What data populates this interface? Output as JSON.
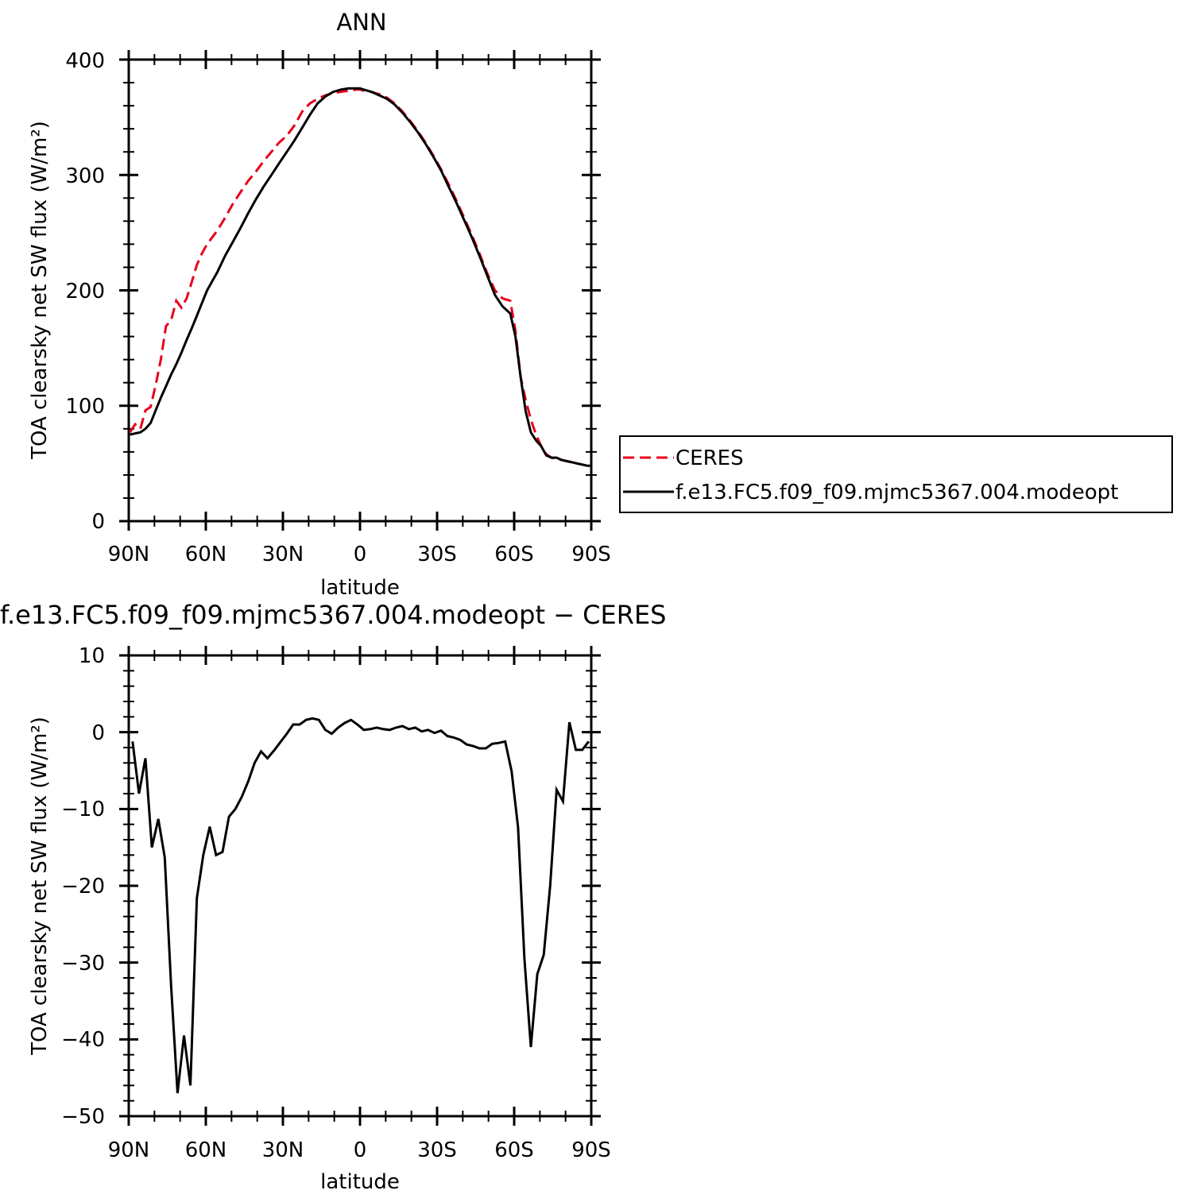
{
  "chart_data": [
    {
      "type": "line",
      "title": "ANN",
      "xlabel": "latitude",
      "ylabel": "TOA clearsky net SW flux (W/m²)",
      "xlim": [
        90,
        -90
      ],
      "ylim": [
        0,
        400
      ],
      "xticks": [
        90,
        60,
        30,
        0,
        -30,
        -60,
        -90
      ],
      "xtick_labels": [
        "90N",
        "60N",
        "30N",
        "0",
        "30S",
        "60S",
        "90S"
      ],
      "yticks": [
        0,
        100,
        200,
        300,
        400
      ],
      "ytick_labels": [
        "0",
        "100",
        "200",
        "300",
        "400"
      ],
      "legend_position": "right",
      "colors": {
        "CERES": "#e8001c",
        "model": "#000000"
      },
      "series": [
        {
          "name": "CERES",
          "style": "dashed",
          "x": [
            89.5,
            87.5,
            85.5,
            83.5,
            81.5,
            79.5,
            77.5,
            75.5,
            73.5,
            71.5,
            69.5,
            67.5,
            65.5,
            63.5,
            61.5,
            59.5,
            57.5,
            55.5,
            52.5,
            49.5,
            46.5,
            43.5,
            40.5,
            37.5,
            34.5,
            31.5,
            28.5,
            25.5,
            22.5,
            19.5,
            16.5,
            13.5,
            10.5,
            7.5,
            4.5,
            1.5,
            0,
            -1.5,
            -4.5,
            -7.5,
            -10.5,
            -13.5,
            -16.5,
            -19.5,
            -22.5,
            -25.5,
            -28.5,
            -31.5,
            -34.5,
            -37.5,
            -40.5,
            -43.5,
            -46.5,
            -49.5,
            -52.5,
            -55.5,
            -58.5,
            -60.5,
            -62.5,
            -64.5,
            -66.5,
            -68.5,
            -70.5,
            -72.5,
            -74.5,
            -76.5,
            -78.5,
            -80.5,
            -82.5,
            -84.5,
            -86.5,
            -88.5,
            -89.5
          ],
          "y": [
            77,
            84,
            80,
            96,
            99,
            118,
            140,
            169,
            174,
            191,
            185,
            193,
            207,
            222,
            232,
            240,
            246,
            252,
            263,
            275,
            285,
            295,
            303,
            312,
            320,
            328,
            334,
            343,
            355,
            362,
            366,
            369,
            371,
            372,
            373,
            374,
            374,
            373,
            372,
            370,
            367,
            362,
            355,
            347,
            338,
            328,
            317,
            305,
            292,
            278,
            263,
            248,
            232,
            215,
            200,
            193,
            191,
            165,
            125,
            105,
            88,
            75,
            65,
            58,
            55,
            54,
            53,
            52,
            51,
            50,
            49,
            48,
            48
          ]
        },
        {
          "name": "f.e13.FC5.f09_f09.mjmc5367.004.modeopt",
          "style": "solid",
          "x": [
            89.5,
            87.5,
            85.5,
            83.5,
            81.5,
            79.5,
            77.5,
            75.5,
            73.5,
            71.5,
            69.5,
            67.5,
            65.5,
            63.5,
            61.5,
            59.5,
            57.5,
            55.5,
            52.5,
            49.5,
            46.5,
            43.5,
            40.5,
            37.5,
            34.5,
            31.5,
            28.5,
            25.5,
            22.5,
            19.5,
            16.5,
            13.5,
            10.5,
            7.5,
            4.5,
            1.5,
            0,
            -1.5,
            -4.5,
            -7.5,
            -10.5,
            -13.5,
            -16.5,
            -19.5,
            -22.5,
            -25.5,
            -28.5,
            -31.5,
            -34.5,
            -37.5,
            -40.5,
            -43.5,
            -46.5,
            -49.5,
            -52.5,
            -55.5,
            -58.5,
            -60.5,
            -62.5,
            -64.5,
            -66.5,
            -68.5,
            -70.5,
            -72.5,
            -74.5,
            -76.5,
            -78.5,
            -80.5,
            -82.5,
            -84.5,
            -86.5,
            -88.5,
            -89.5
          ],
          "y": [
            75,
            76,
            77,
            80,
            85,
            96,
            107,
            117,
            127,
            136,
            146,
            157,
            167,
            178,
            189,
            200,
            208,
            216,
            230,
            242,
            254,
            267,
            279,
            290,
            300,
            310,
            320,
            330,
            341,
            352,
            362,
            368,
            372,
            374,
            375,
            375,
            375,
            374,
            372,
            369,
            366,
            361,
            354,
            346,
            337,
            327,
            316,
            304,
            290,
            276,
            261,
            246,
            230,
            213,
            196,
            186,
            180,
            160,
            125,
            95,
            77,
            70,
            65,
            57,
            55,
            55,
            53,
            52,
            51,
            50,
            49,
            48,
            48
          ]
        }
      ]
    },
    {
      "type": "line",
      "title": "f.e13.FC5.f09_f09.mjmc5367.004.modeopt − CERES",
      "xlabel": "latitude",
      "ylabel": "TOA clearsky net SW flux (W/m²)",
      "xlim": [
        90,
        -90
      ],
      "ylim": [
        -50,
        10
      ],
      "xticks": [
        90,
        60,
        30,
        0,
        -30,
        -60,
        -90
      ],
      "xtick_labels": [
        "90N",
        "60N",
        "30N",
        "0",
        "30S",
        "60S",
        "90S"
      ],
      "yticks": [
        -50,
        -40,
        -30,
        -20,
        -10,
        0,
        10
      ],
      "ytick_labels": [
        "−50",
        "−40",
        "−30",
        "−20",
        "−10",
        "0",
        "10"
      ],
      "series": [
        {
          "style": "solid",
          "x": [
            88.5,
            86,
            83.5,
            81,
            78.5,
            76,
            73.5,
            71,
            68.5,
            66,
            63.5,
            61,
            58.5,
            56,
            53.5,
            51,
            48.5,
            46,
            43.5,
            41,
            38.5,
            36,
            33.5,
            31,
            28.5,
            26,
            23.5,
            21,
            18.5,
            16,
            13.5,
            11,
            8.5,
            6,
            3.5,
            1,
            -1.5,
            -4,
            -6.5,
            -9,
            -11.5,
            -14,
            -16.5,
            -19,
            -21.5,
            -24,
            -26.5,
            -29,
            -31.5,
            -34,
            -36.5,
            -39,
            -41.5,
            -44,
            -46.5,
            -49,
            -51.5,
            -54,
            -56.5,
            -59,
            -61.5,
            -64,
            -66.5,
            -69,
            -71.5,
            -74,
            -76.5,
            -79,
            -81.5,
            -84,
            -86.5,
            -89
          ],
          "y": [
            -1.2,
            -8,
            -3.4,
            -15,
            -11.3,
            -16.3,
            -33,
            -47,
            -39.5,
            -46,
            -21.6,
            -16,
            -12.3,
            -16,
            -15.6,
            -11,
            -10,
            -8.4,
            -6.4,
            -4,
            -2.5,
            -3.4,
            -2.4,
            -1.3,
            -0.2,
            1,
            1,
            1.6,
            1.8,
            1.6,
            0.3,
            -0.2,
            0.6,
            1.2,
            1.6,
            1.0,
            0.3,
            0.4,
            0.6,
            0.4,
            0.3,
            0.6,
            0.8,
            0.4,
            0.6,
            0.1,
            0.3,
            -0.1,
            0.2,
            -0.5,
            -0.7,
            -1.0,
            -1.6,
            -1.8,
            -2.1,
            -2.1,
            -1.5,
            -1.4,
            -1.2,
            -5.1,
            -12.4,
            -29.5,
            -41,
            -31.5,
            -29,
            -20,
            -7.5,
            -9,
            1.3,
            -2.3,
            -2.3,
            -1.2
          ]
        }
      ]
    }
  ]
}
